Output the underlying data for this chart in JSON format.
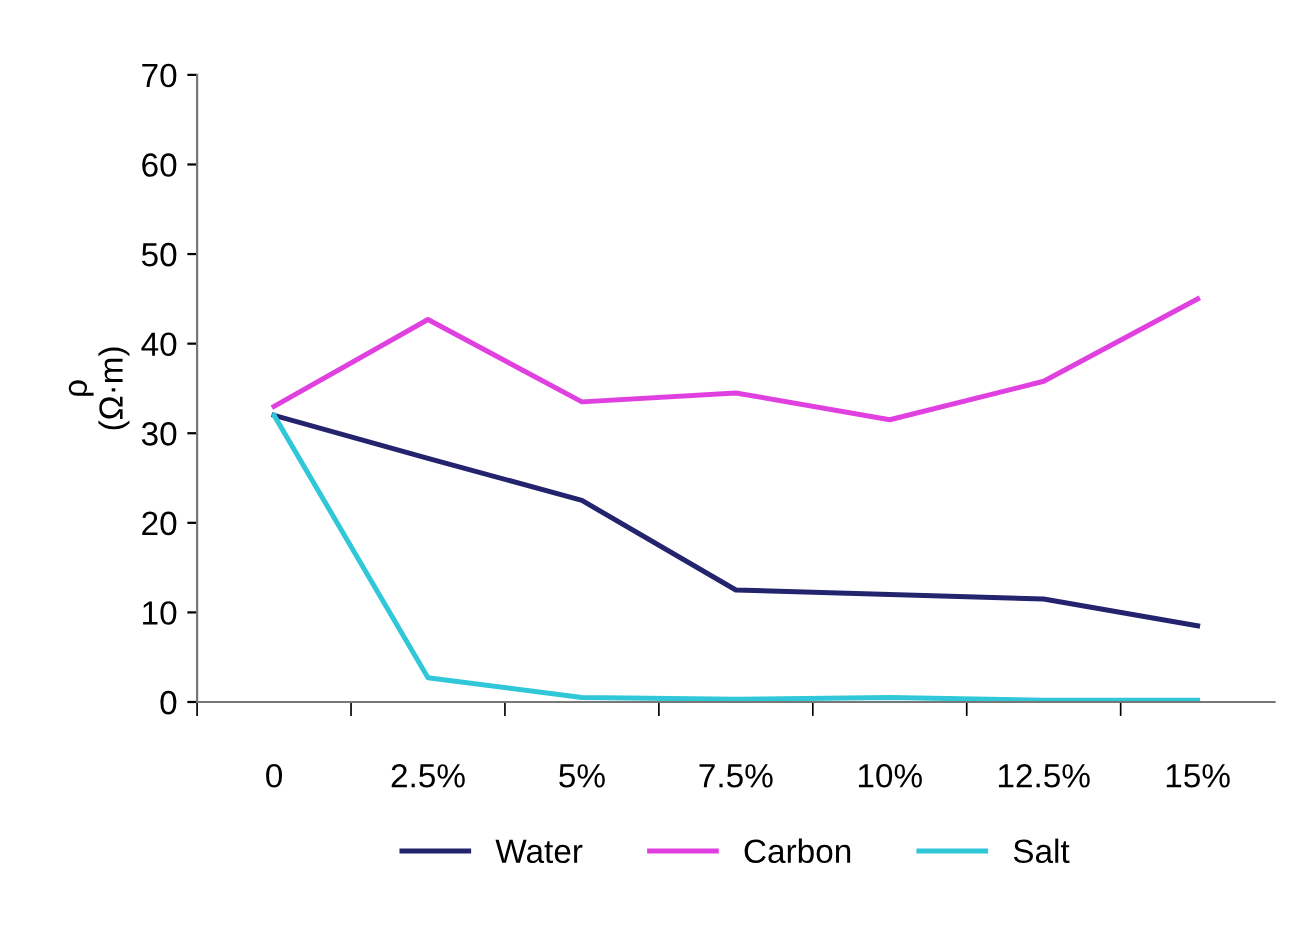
{
  "chart_data": {
    "type": "line",
    "ylabel": "ρ\n(Ω·m)",
    "categories": [
      "0",
      "2.5%",
      "5%",
      "7.5%",
      "10%",
      "12.5%",
      "15%"
    ],
    "series": [
      {
        "name": "Water",
        "color": "#23236e",
        "values": [
          32,
          27.2,
          22.5,
          12.5,
          12,
          11.5,
          8.5
        ]
      },
      {
        "name": "Carbon",
        "color": "#e040e0",
        "values": [
          33,
          42.7,
          33.5,
          34.5,
          31.5,
          35.8,
          45
        ]
      },
      {
        "name": "Salt",
        "color": "#30c8d8",
        "values": [
          32,
          2.7,
          0.5,
          0.3,
          0.5,
          0.2,
          0.2
        ]
      }
    ],
    "ylim": [
      0,
      70
    ],
    "yticks": [
      0,
      10,
      20,
      30,
      40,
      50,
      60,
      70
    ],
    "grid": false,
    "legend": "bottom",
    "marker": "none",
    "line_style": "solid"
  }
}
